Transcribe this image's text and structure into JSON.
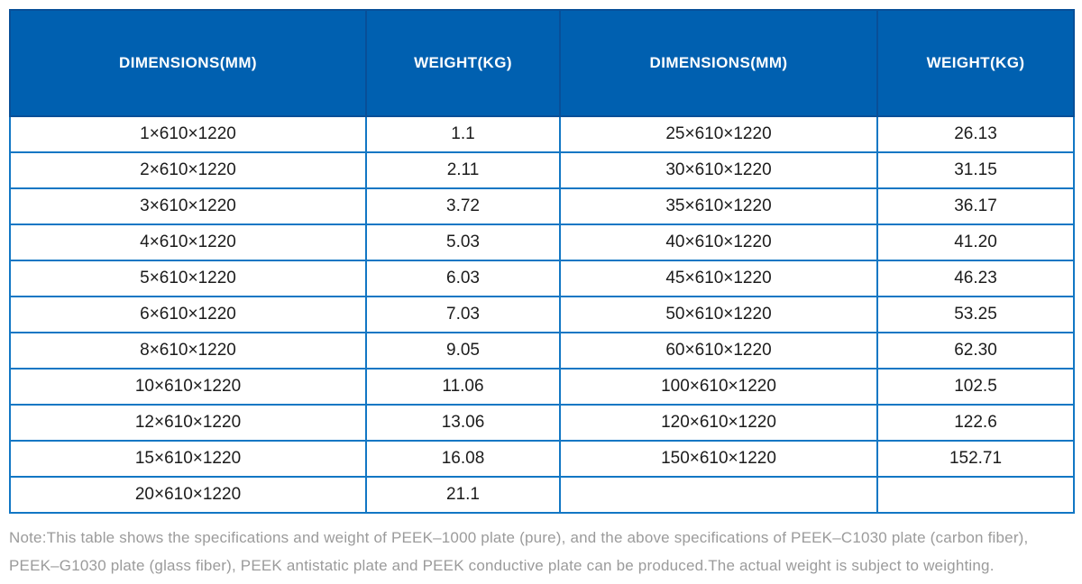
{
  "table": {
    "headers": [
      {
        "label": "DIMENSIONS(MM)"
      },
      {
        "label": "WEIGHT(KG)"
      },
      {
        "label": "DIMENSIONS(MM)"
      },
      {
        "label": "WEIGHT(KG)"
      }
    ],
    "rows": [
      [
        "1×610×1220",
        "1.1",
        "25×610×1220",
        "26.13"
      ],
      [
        "2×610×1220",
        "2.11",
        "30×610×1220",
        "31.15"
      ],
      [
        "3×610×1220",
        "3.72",
        "35×610×1220",
        "36.17"
      ],
      [
        "4×610×1220",
        "5.03",
        "40×610×1220",
        "41.20"
      ],
      [
        "5×610×1220",
        "6.03",
        "45×610×1220",
        "46.23"
      ],
      [
        "6×610×1220",
        "7.03",
        "50×610×1220",
        "53.25"
      ],
      [
        "8×610×1220",
        "9.05",
        "60×610×1220",
        "62.30"
      ],
      [
        "10×610×1220",
        "11.06",
        "100×610×1220",
        "102.5"
      ],
      [
        "12×610×1220",
        "13.06",
        "120×610×1220",
        "122.6"
      ],
      [
        "15×610×1220",
        "16.08",
        "150×610×1220",
        "152.71"
      ],
      [
        "20×610×1220",
        "21.1",
        "",
        ""
      ]
    ]
  },
  "note": "Note:This table shows the specifications and weight of PEEK–1000 plate (pure), and the above specifications of PEEK–C1030 plate (carbon fiber), PEEK–G1030 plate (glass fiber), PEEK antistatic plate and PEEK conductive plate can be produced.The actual weight is subject to weighting.",
  "colors": {
    "header_bg": "#0060b0",
    "header_border": "#084f98",
    "header_text": "#ffffff",
    "body_border": "#1277c4",
    "body_text": "#1c1c1c",
    "note_text": "#9b9b9b"
  }
}
